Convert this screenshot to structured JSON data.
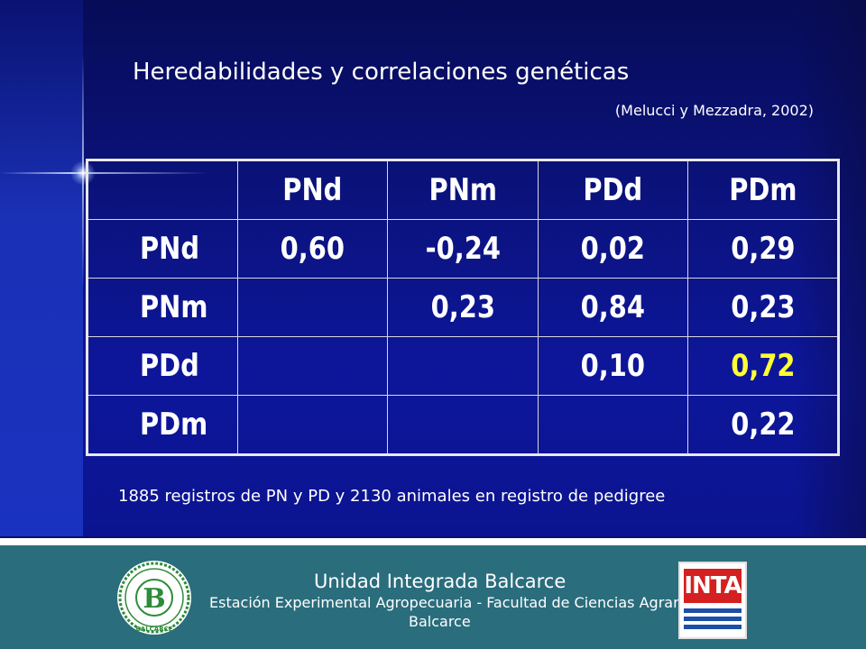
{
  "slide": {
    "title": "Heredabilidades y correlaciones genéticas",
    "citation": "(Melucci y Mezzadra, 2002)",
    "table": {
      "header": [
        "",
        "PNd",
        "PNm",
        "PDd",
        "PDm"
      ],
      "rows": [
        {
          "label": "PNd",
          "cells": [
            "0,60",
            "-0,24",
            "0,02",
            "0,29"
          ]
        },
        {
          "label": "PNm",
          "cells": [
            "",
            "0,23",
            "0,84",
            "0,23"
          ]
        },
        {
          "label": "PDd",
          "cells": [
            "",
            "",
            "0,10",
            "0,72"
          ]
        },
        {
          "label": "PDm",
          "cells": [
            "",
            "",
            "",
            "0,22"
          ]
        }
      ],
      "highlight_color": "#ffff33"
    },
    "note": "1885 registros de PN y PD y 2130 animales en registro de pedigree"
  },
  "footer": {
    "title": "Unidad Integrada Balcarce",
    "subtitle": "Estación Experimental Agropecuaria - Facultad de Ciencias Agrarias",
    "place": "Balcarce",
    "seal": {
      "letter": "B",
      "bottom_text": "BALCARCE",
      "color": "#2e8b3a"
    },
    "logo": {
      "text": "INTA",
      "color": "#d42020"
    }
  },
  "colors": {
    "background": "#0a0f6e",
    "footer": "#2a6d7d"
  }
}
